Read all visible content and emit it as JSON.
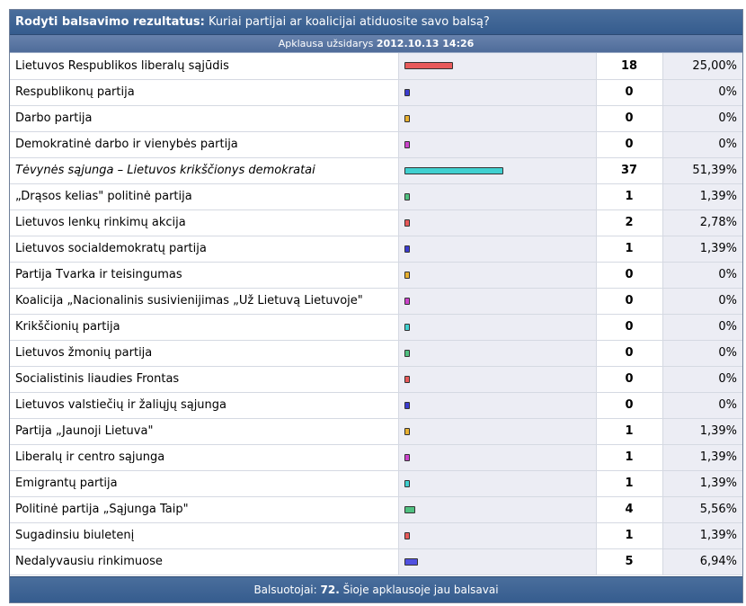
{
  "header": {
    "title_bold": "Rodyti balsavimo rezultatus:",
    "question": "Kuriai partijai ar koalicijai atiduosite savo balsą?"
  },
  "subheader": {
    "closed_label": "Apklausa užsidarys",
    "closed_date": "2012.10.13 14:26"
  },
  "options": [
    {
      "label": "Lietuvos Respublikos liberalų sąjūdis",
      "count": "18",
      "percent": "25,00%",
      "share": 25.0,
      "color": "#e85a5a",
      "italic": false
    },
    {
      "label": "Respublikonų partija",
      "count": "0",
      "percent": "0%",
      "share": 0,
      "color": "#3b3bd0",
      "italic": false
    },
    {
      "label": "Darbo partija",
      "count": "0",
      "percent": "0%",
      "share": 0,
      "color": "#e8b030",
      "italic": false
    },
    {
      "label": "Demokratinė darbo ir vienybės partija",
      "count": "0",
      "percent": "0%",
      "share": 0,
      "color": "#cc44cc",
      "italic": false
    },
    {
      "label": "Tėvynės sąjunga – Lietuvos krikščionys demokratai",
      "count": "37",
      "percent": "51,39%",
      "share": 51.39,
      "color": "#40d0d0",
      "italic": true
    },
    {
      "label": "„Drąsos kelias\" politinė partija",
      "count": "1",
      "percent": "1,39%",
      "share": 1.39,
      "color": "#50c080",
      "italic": false
    },
    {
      "label": "Lietuvos lenkų rinkimų akcija",
      "count": "2",
      "percent": "2,78%",
      "share": 2.78,
      "color": "#e85a5a",
      "italic": false
    },
    {
      "label": "Lietuvos socialdemokratų partija",
      "count": "1",
      "percent": "1,39%",
      "share": 1.39,
      "color": "#3b3bd0",
      "italic": false
    },
    {
      "label": "Partija Tvarka ir teisingumas",
      "count": "0",
      "percent": "0%",
      "share": 0,
      "color": "#e8b030",
      "italic": false
    },
    {
      "label": "Koalicija „Nacionalinis susivienijimas „Už Lietuvą Lietuvoje\"",
      "count": "0",
      "percent": "0%",
      "share": 0,
      "color": "#cc44cc",
      "italic": false
    },
    {
      "label": "Krikščionių partija",
      "count": "0",
      "percent": "0%",
      "share": 0,
      "color": "#40d0d0",
      "italic": false
    },
    {
      "label": "Lietuvos žmonių partija",
      "count": "0",
      "percent": "0%",
      "share": 0,
      "color": "#50c080",
      "italic": false
    },
    {
      "label": "Socialistinis liaudies Frontas",
      "count": "0",
      "percent": "0%",
      "share": 0,
      "color": "#e85a5a",
      "italic": false
    },
    {
      "label": "Lietuvos valstiečių ir žaliųjų sąjunga",
      "count": "0",
      "percent": "0%",
      "share": 0,
      "color": "#3b3bd0",
      "italic": false
    },
    {
      "label": "Partija „Jaunoji Lietuva\"",
      "count": "1",
      "percent": "1,39%",
      "share": 1.39,
      "color": "#e8b030",
      "italic": false
    },
    {
      "label": "Liberalų ir centro sąjunga",
      "count": "1",
      "percent": "1,39%",
      "share": 1.39,
      "color": "#cc44cc",
      "italic": false
    },
    {
      "label": "Emigrantų partija",
      "count": "1",
      "percent": "1,39%",
      "share": 1.39,
      "color": "#40d0d0",
      "italic": false
    },
    {
      "label": "Politinė partija „Sąjunga Taip\"",
      "count": "4",
      "percent": "5,56%",
      "share": 5.56,
      "color": "#50c080",
      "italic": false
    },
    {
      "label": "Sugadinsiu biuletenį",
      "count": "1",
      "percent": "1,39%",
      "share": 1.39,
      "color": "#e85a5a",
      "italic": false
    },
    {
      "label": "Nedalyvausiu rinkimuose",
      "count": "5",
      "percent": "6,94%",
      "share": 6.94,
      "color": "#5050e0",
      "italic": false
    }
  ],
  "footer": {
    "voters_label": "Balsuotojai:",
    "voters_count": "72.",
    "note": "Šioje apklausoje jau balsavai"
  }
}
